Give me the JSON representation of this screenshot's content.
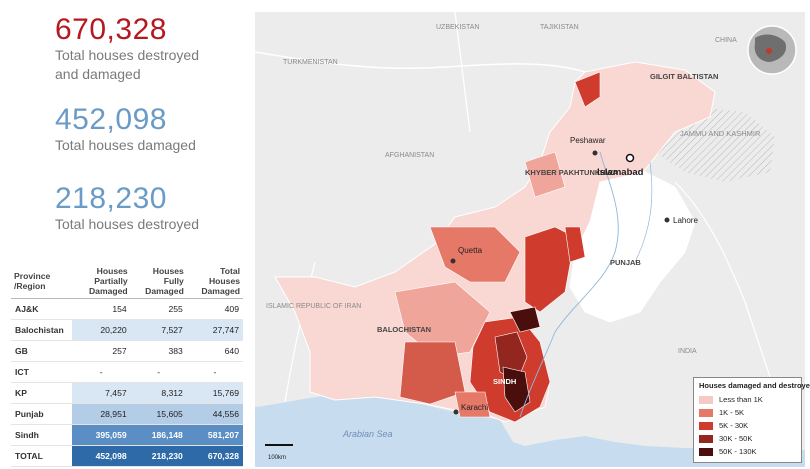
{
  "stats": [
    {
      "value": "670,328",
      "label_line1": "Total houses destroyed",
      "label_line2": "and damaged",
      "color": "#b5181e"
    },
    {
      "value": "452,098",
      "label_line1": "Total houses damaged",
      "label_line2": "",
      "color": "#6a9bc6"
    },
    {
      "value": "218,230",
      "label_line1": "Total houses destroyed",
      "label_line2": "",
      "color": "#6a9bc6"
    }
  ],
  "table": {
    "headers": [
      "Province /Region",
      "Houses Partially Damaged",
      "Houses Fully Damaged",
      "Total Houses Damaged"
    ],
    "rows": [
      {
        "province": "AJ&K",
        "partial": "154",
        "fully": "255",
        "total": "409",
        "level": 0
      },
      {
        "province": "Balochistan",
        "partial": "20,220",
        "fully": "7,527",
        "total": "27,747",
        "level": 1
      },
      {
        "province": "GB",
        "partial": "257",
        "fully": "383",
        "total": "640",
        "level": 0
      },
      {
        "province": "ICT",
        "partial": "-",
        "fully": "-",
        "total": "-",
        "level": 0
      },
      {
        "province": "KP",
        "partial": "7,457",
        "fully": "8,312",
        "total": "15,769",
        "level": 1
      },
      {
        "province": "Punjab",
        "partial": "28,951",
        "fully": "15,605",
        "total": "44,556",
        "level": 2
      },
      {
        "province": "Sindh",
        "partial": "395,059",
        "fully": "186,148",
        "total": "581,207",
        "level": 3
      },
      {
        "province": "TOTAL",
        "partial": "452,098",
        "fully": "218,230",
        "total": "670,328",
        "level": 4
      }
    ],
    "level_colors": [
      "#ffffff",
      "#d9e6f3",
      "#b3cde6",
      "#5a8ec4",
      "#2f6aa8"
    ]
  },
  "map": {
    "country_labels": [
      "UZBEKISTAN",
      "TAJIKISTAN",
      "TURKMENISTAN",
      "AFGHANISTAN",
      "ISLAMIC REPUBLIC OF IRAN",
      "INDIA",
      "CHINA"
    ],
    "region_labels": [
      "GILGIT BALTISTAN",
      "JAMMU AND KASHMIR",
      "KHYBER PAKHTUNKHWA",
      "PUNJAB",
      "BALOCHISTAN",
      "SINDH"
    ],
    "cities": [
      "Peshawar",
      "Islamabad",
      "Lahore",
      "Quetta",
      "Karachi"
    ],
    "sea_label": "Arabian Sea",
    "scale_label": "100km"
  },
  "legend": {
    "title": "Houses damaged and destroyed",
    "items": [
      {
        "label": "Less than 1K",
        "color": "#f6c9c4"
      },
      {
        "label": "1K - 5K",
        "color": "#e67868"
      },
      {
        "label": "5K - 30K",
        "color": "#cf3b2c"
      },
      {
        "label": "30K - 50K",
        "color": "#93261f"
      },
      {
        "label": "50K - 130K",
        "color": "#4a0f0c"
      }
    ]
  }
}
